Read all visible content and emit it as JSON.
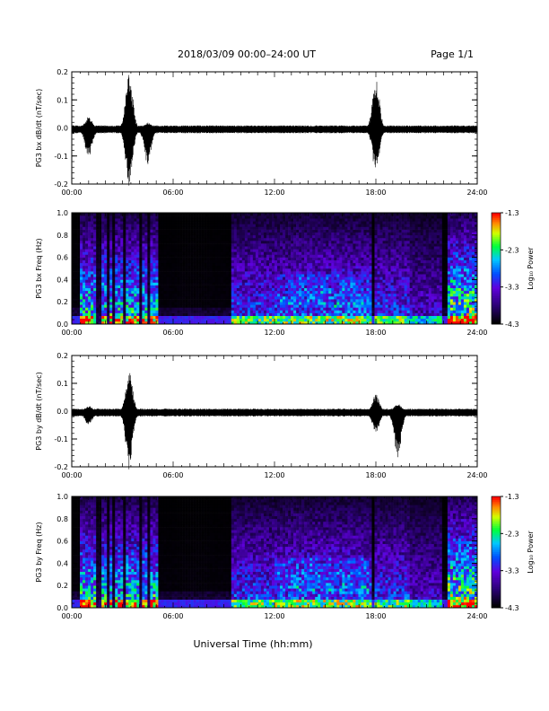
{
  "header": {
    "title": "2018/03/09  00:00–24:00 UT",
    "page": "Page 1/1"
  },
  "footer": {
    "xlabel": "Universal Time (hh:mm)"
  },
  "chart_data": [
    {
      "type": "line",
      "ylabel": "PG3 bx dB/dt (nT/sec)",
      "ylim": [
        -0.2,
        0.2
      ],
      "yticks": [
        "0.2",
        "0.1",
        "0.0",
        "-0.1",
        "-0.2"
      ],
      "xlim": [
        0,
        24
      ],
      "xticks": [
        "00:00",
        "06:00",
        "12:00",
        "18:00",
        "24:00"
      ],
      "bursts": [
        {
          "x": 1.0,
          "min": -0.1,
          "max": 0.04
        },
        {
          "x": 3.4,
          "min": -0.2,
          "max": 0.2
        },
        {
          "x": 4.5,
          "min": -0.12,
          "max": 0.02
        },
        {
          "x": 18.0,
          "min": -0.15,
          "max": 0.18
        }
      ]
    },
    {
      "type": "heatmap",
      "ylabel": "PG3 bx Freq (Hz)",
      "ylim": [
        0.0,
        1.0
      ],
      "yticks": [
        "1.0",
        "0.8",
        "0.6",
        "0.4",
        "0.2",
        "0.0"
      ],
      "xlim": [
        0,
        24
      ],
      "xticks": [
        "00:00",
        "06:00",
        "12:00",
        "18:00",
        "24:00"
      ],
      "colorbar": {
        "label": "Log₁₀ Power",
        "ticks": [
          "-1.3",
          "-2.3",
          "-3.3",
          "-4.3"
        ],
        "range": [
          -4.3,
          -1.3
        ]
      }
    },
    {
      "type": "line",
      "ylabel": "PG3 by dB/dt (nT/sec)",
      "ylim": [
        -0.2,
        0.2
      ],
      "yticks": [
        "0.2",
        "0.1",
        "0.0",
        "-0.1",
        "-0.2"
      ],
      "xlim": [
        0,
        24
      ],
      "xticks": [
        "00:00",
        "06:00",
        "12:00",
        "18:00",
        "24:00"
      ],
      "bursts": [
        {
          "x": 1.0,
          "min": -0.04,
          "max": 0.02
        },
        {
          "x": 3.4,
          "min": -0.2,
          "max": 0.14
        },
        {
          "x": 18.0,
          "min": -0.07,
          "max": 0.06
        },
        {
          "x": 19.3,
          "min": -0.16,
          "max": 0.03
        }
      ]
    },
    {
      "type": "heatmap",
      "ylabel": "PG3 by Freq (Hz)",
      "ylim": [
        0.0,
        1.0
      ],
      "yticks": [
        "1.0",
        "0.8",
        "0.6",
        "0.4",
        "0.2",
        "0.0"
      ],
      "xlim": [
        0,
        24
      ],
      "xticks": [
        "00:00",
        "06:00",
        "12:00",
        "18:00",
        "24:00"
      ],
      "colorbar": {
        "label": "Log₁₀ Power",
        "ticks": [
          "-1.3",
          "-2.3",
          "-3.3",
          "-4.3"
        ],
        "range": [
          -4.3,
          -1.3
        ]
      }
    }
  ]
}
